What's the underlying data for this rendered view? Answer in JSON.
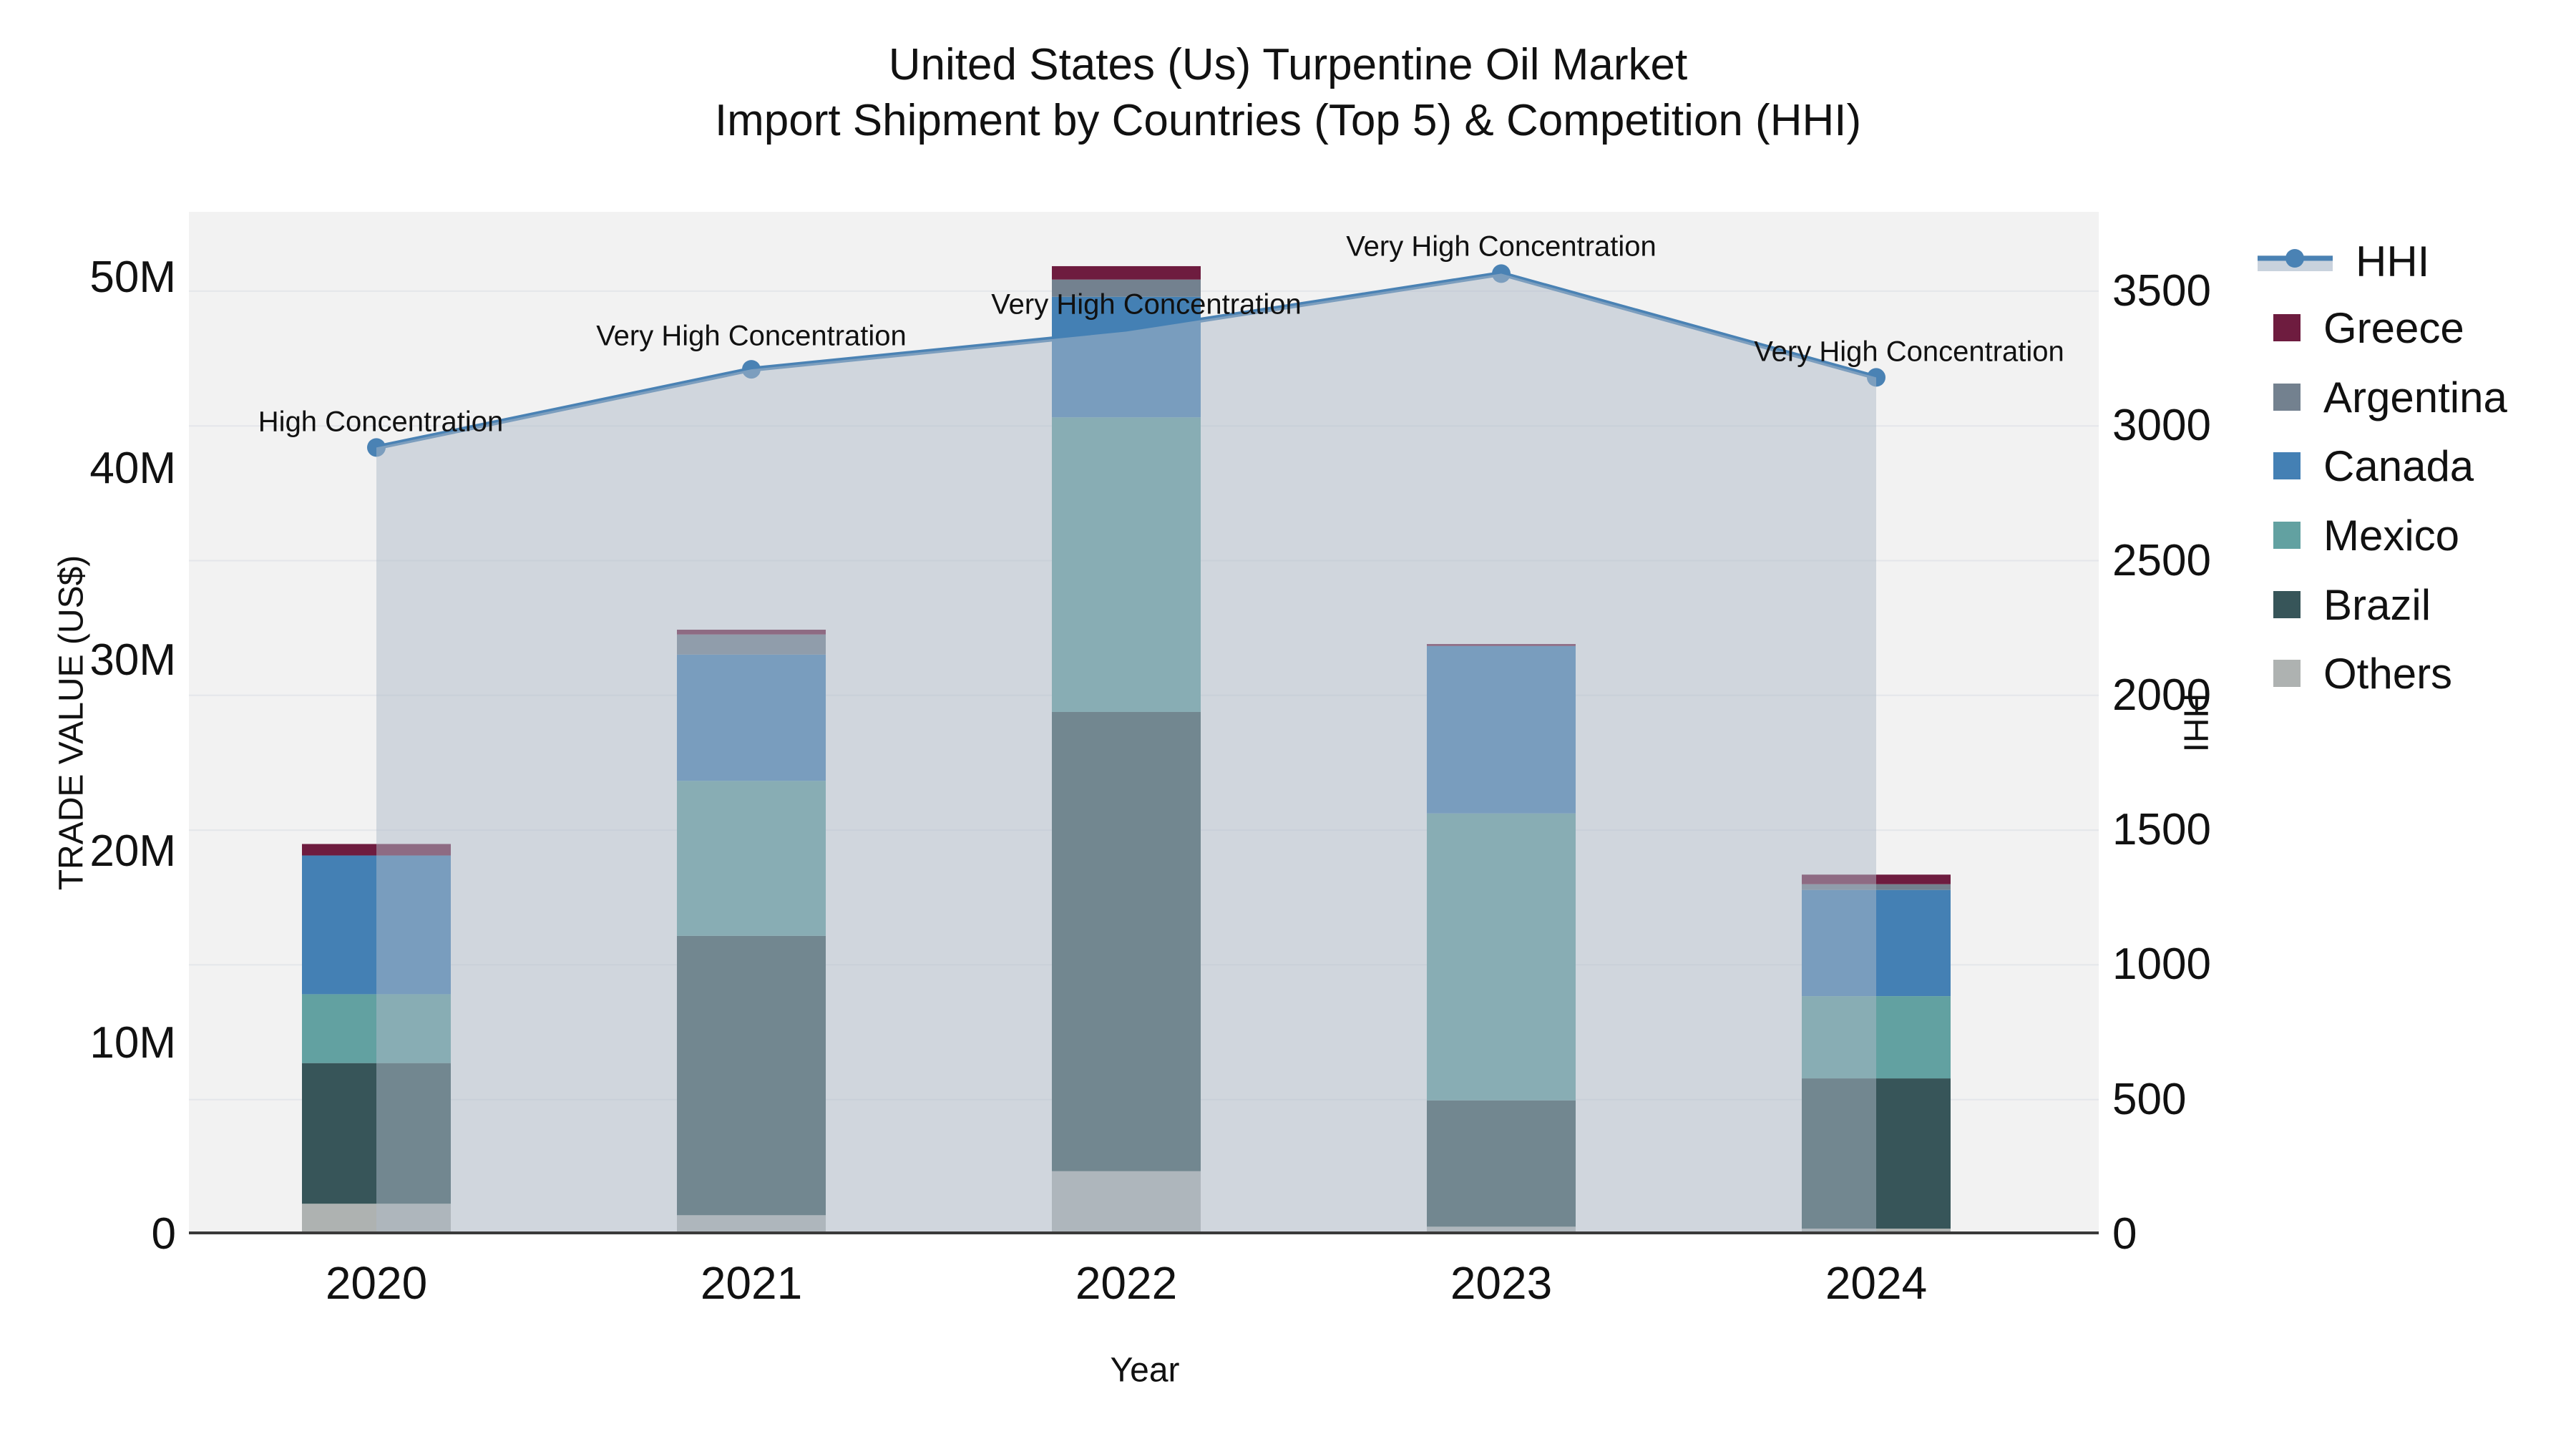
{
  "title": {
    "line1": "United States (Us) Turpentine Oil Market",
    "line2": "Import Shipment by Countries (Top 5) & Competition (HHI)"
  },
  "axes": {
    "left": {
      "title": "TRADE VALUE (US$)",
      "ticks": [
        "0",
        "10M",
        "20M",
        "30M",
        "40M",
        "50M"
      ],
      "tick_values_m": [
        0,
        10,
        20,
        30,
        40,
        50
      ]
    },
    "right": {
      "title": "HHI",
      "ticks": [
        "0",
        "500",
        "1000",
        "1500",
        "2000",
        "2500",
        "3000",
        "3500"
      ],
      "tick_values": [
        0,
        500,
        1000,
        1500,
        2000,
        2500,
        3000,
        3500
      ]
    },
    "x": {
      "title": "Year"
    }
  },
  "legend": {
    "items": [
      {
        "label": "HHI",
        "type": "line",
        "color": "#4a82b4"
      },
      {
        "label": "Greece",
        "type": "swatch",
        "color": "#6e1c3f"
      },
      {
        "label": "Argentina",
        "type": "swatch",
        "color": "#73818f"
      },
      {
        "label": "Canada",
        "type": "swatch",
        "color": "#4480b4"
      },
      {
        "label": "Mexico",
        "type": "swatch",
        "color": "#62a1a1"
      },
      {
        "label": "Brazil",
        "type": "swatch",
        "color": "#375559"
      },
      {
        "label": "Others",
        "type": "swatch",
        "color": "#aeb2b1"
      }
    ]
  },
  "chart_data": {
    "type": "combo-stacked-bar-line",
    "categories": [
      "2020",
      "2021",
      "2022",
      "2023",
      "2024"
    ],
    "bar_value_unit": "M US$ (trade value, left axis)",
    "series": [
      {
        "name": "Others",
        "color": "#aeb2b1",
        "values": [
          1.6,
          1.0,
          3.3,
          0.4,
          0.3
        ]
      },
      {
        "name": "Brazil",
        "color": "#375559",
        "values": [
          7.35,
          14.6,
          24.0,
          6.6,
          7.85
        ]
      },
      {
        "name": "Mexico",
        "color": "#62a1a1",
        "values": [
          3.6,
          8.1,
          15.4,
          15.0,
          4.3
        ]
      },
      {
        "name": "Canada",
        "color": "#4480b4",
        "values": [
          7.25,
          6.6,
          6.3,
          8.75,
          5.55
        ]
      },
      {
        "name": "Argentina",
        "color": "#73818f",
        "values": [
          0.0,
          1.05,
          0.9,
          0.0,
          0.3
        ]
      },
      {
        "name": "Greece",
        "color": "#6e1c3f",
        "values": [
          0.6,
          0.25,
          0.7,
          0.1,
          0.5
        ]
      }
    ],
    "bar_totals_m": [
      20.4,
      31.6,
      50.6,
      30.85,
      18.8
    ],
    "line": {
      "name": "HHI",
      "axis": "right",
      "color": "#4a82b4",
      "fill_color": "rgba(174,185,200,0.5)",
      "values": [
        2920,
        3210,
        3350,
        3565,
        3180
      ]
    },
    "annotations": [
      "High Concentration",
      "Very High Concentration",
      "Very High Concentration",
      "Very High Concentration",
      "Very High Concentration"
    ],
    "left_axis_range_m": [
      0,
      53.4
    ],
    "right_axis_range": [
      0,
      3795
    ],
    "grid": "on",
    "legend_position": "right"
  },
  "colors": {
    "plot_background": "#f2f2f2",
    "gridline": "#e4e6ea",
    "axis_line": "#3a3a3a",
    "hhi_line": "#4a82b4",
    "area_fill": "rgba(174,185,200,0.5)",
    "legend_band": "#c9d2dd",
    "text": "#111111"
  }
}
